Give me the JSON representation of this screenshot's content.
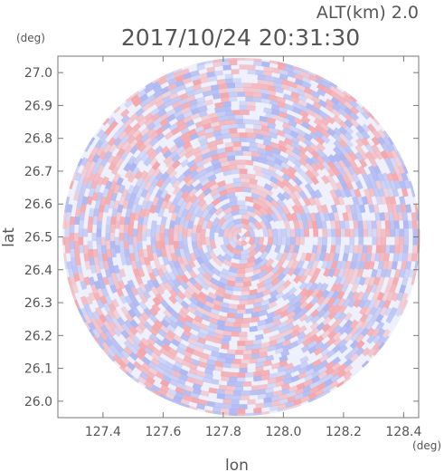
{
  "header": {
    "altitude_label": "ALT(km) 2.0",
    "timestamp": "2017/10/24 20:31:30"
  },
  "chart_data": {
    "type": "heatmap",
    "title": "2017/10/24 20:31:30",
    "xlabel": "lon",
    "ylabel": "lat",
    "x_unit": "(deg)",
    "y_unit": "(deg)",
    "xlim": [
      127.25,
      128.45
    ],
    "ylim": [
      25.95,
      27.05
    ],
    "x_ticks": [
      127.4,
      127.6,
      127.8,
      128.0,
      128.2,
      128.4
    ],
    "x_tick_labels": [
      "127.4",
      "127.6",
      "127.8",
      "128.0",
      "128.2",
      "128.4"
    ],
    "y_ticks": [
      26.0,
      26.1,
      26.2,
      26.3,
      26.4,
      26.5,
      26.6,
      26.7,
      26.8,
      26.9,
      27.0
    ],
    "y_tick_labels": [
      "26.0",
      "26.1",
      "26.2",
      "26.3",
      "26.4",
      "26.5",
      "26.6",
      "26.7",
      "26.8",
      "26.9",
      "27.0"
    ],
    "center": [
      127.86,
      26.5
    ],
    "radius_deg": 0.545,
    "colors": {
      "positive": "#f4a3a8",
      "negative": "#a9b3f0",
      "neutral": "#ffffff",
      "axis": "#777777"
    },
    "grid": false
  }
}
